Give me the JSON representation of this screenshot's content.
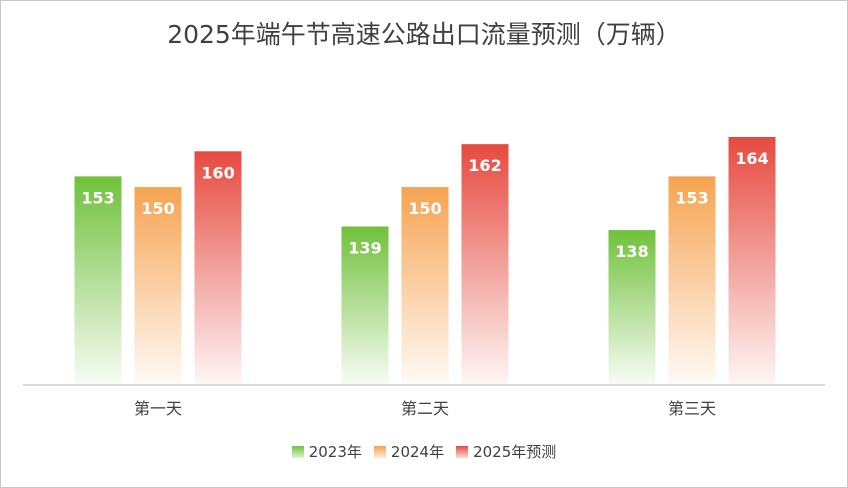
{
  "chart_data": {
    "type": "bar",
    "title": "2025年端午节高速公路出口流量预测（万辆）",
    "categories": [
      "第一天",
      "第二天",
      "第三天"
    ],
    "series": [
      {
        "name": "2023年",
        "values": [
          153,
          139,
          138
        ],
        "color": "#70c13a"
      },
      {
        "name": "2024年",
        "values": [
          150,
          150,
          153
        ],
        "color": "#f6a350"
      },
      {
        "name": "2025年预测",
        "values": [
          160,
          162,
          164
        ],
        "color": "#e64a3f"
      }
    ],
    "ylim": [
      95,
      170
    ],
    "data_labels": true,
    "grid": false,
    "legend": "bottom"
  }
}
